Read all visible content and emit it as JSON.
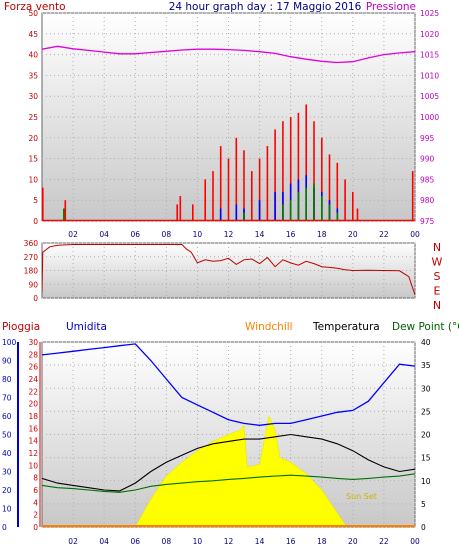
{
  "header": {
    "left": "Forza vento",
    "center": "24 hour graph day : 17 Maggio 2016",
    "right": "Pressione"
  },
  "labels": {
    "pioggia": "Pioggia",
    "umidita": "Umidita",
    "windchill": "Windchill",
    "temperatura": "Temperatura",
    "dewpoint": "Dew Point (°C",
    "sunset": "Sun Set"
  },
  "colors": {
    "wind": "#ff0000",
    "gust": "#0000ff",
    "avg": "#008000",
    "pressure": "#e000e0",
    "temperature": "#000000",
    "humidity": "#0000ff",
    "dewpoint": "#007000",
    "solar": "#ffff00",
    "rain": "#ff8000",
    "header_left": "#c00000",
    "header_center": "#000080",
    "header_right": "#c000c0",
    "rain_axis": "#cc0000",
    "hum_axis": "#0000cc",
    "windchill": "#ff8000",
    "dew_label": "#006000",
    "sunset": "#c8b400",
    "direction": "#c00000"
  },
  "chart_data": [
    {
      "type": "line",
      "name": "wind-pressure",
      "x_ticks": [
        "02",
        "04",
        "06",
        "08",
        "10",
        "12",
        "14",
        "16",
        "18",
        "20",
        "22",
        "00"
      ],
      "y_left_ticks": [
        "0",
        "5",
        "10",
        "15",
        "20",
        "25",
        "30",
        "35",
        "40",
        "45",
        "50"
      ],
      "y_left_range": [
        0,
        50
      ],
      "y_right_ticks": [
        "975",
        "980",
        "985",
        "990",
        "995",
        "1000",
        "1005",
        "1010",
        "1015",
        "1020",
        "1025"
      ],
      "y_right_range": [
        975,
        1025
      ],
      "pressure": {
        "x": [
          0,
          1,
          2,
          3,
          4,
          5,
          6,
          7,
          8,
          9,
          10,
          11,
          12,
          13,
          14,
          15,
          16,
          17,
          18,
          19,
          20,
          21,
          22,
          23,
          24
        ],
        "y": [
          1016.3,
          1017.0,
          1016.4,
          1016.0,
          1015.6,
          1015.2,
          1015.2,
          1015.5,
          1015.8,
          1016.1,
          1016.3,
          1016.3,
          1016.2,
          1016.0,
          1015.7,
          1015.3,
          1014.5,
          1013.9,
          1013.4,
          1013.1,
          1013.3,
          1014.2,
          1015.0,
          1015.4,
          1015.7
        ]
      },
      "wind": [
        [
          0.05,
          8
        ],
        [
          1.5,
          5
        ],
        [
          8.7,
          4
        ],
        [
          8.9,
          6
        ],
        [
          9.7,
          4
        ],
        [
          10.5,
          10
        ],
        [
          11,
          12
        ],
        [
          11.5,
          18
        ],
        [
          12,
          15
        ],
        [
          12.5,
          20
        ],
        [
          13,
          17
        ],
        [
          13.5,
          12
        ],
        [
          14,
          15
        ],
        [
          14.5,
          18
        ],
        [
          15,
          22
        ],
        [
          15.5,
          24
        ],
        [
          16,
          25
        ],
        [
          16.5,
          26
        ],
        [
          17,
          28
        ],
        [
          17.5,
          24
        ],
        [
          18,
          20
        ],
        [
          18.5,
          16
        ],
        [
          19,
          14
        ],
        [
          19.5,
          10
        ],
        [
          20,
          7
        ],
        [
          20.3,
          3
        ],
        [
          23.85,
          12
        ]
      ],
      "gust": [
        [
          11.5,
          3
        ],
        [
          12.5,
          4
        ],
        [
          13,
          3
        ],
        [
          14,
          5
        ],
        [
          15,
          7
        ],
        [
          15.5,
          7
        ],
        [
          16,
          9
        ],
        [
          16.5,
          10
        ],
        [
          17,
          11
        ],
        [
          17.5,
          8
        ],
        [
          18,
          7
        ],
        [
          18.5,
          5
        ],
        [
          19,
          3
        ]
      ],
      "avg": [
        [
          1.4,
          3
        ],
        [
          13,
          2
        ],
        [
          15.5,
          4
        ],
        [
          16,
          5
        ],
        [
          16.5,
          7
        ],
        [
          17,
          8
        ],
        [
          17.5,
          9
        ],
        [
          18,
          6
        ],
        [
          18.5,
          4
        ],
        [
          19,
          2
        ]
      ]
    },
    {
      "type": "line",
      "name": "wind-direction",
      "x_ticks": [
        "02",
        "04",
        "06",
        "08",
        "10",
        "12",
        "14",
        "16",
        "18",
        "20",
        "22",
        "00"
      ],
      "y_left_ticks": [
        "0",
        "90",
        "180",
        "270",
        "360"
      ],
      "y_left_range": [
        0,
        360
      ],
      "y_right_ticks": [
        "N",
        "W",
        "S",
        "E",
        "N"
      ],
      "x": [
        0,
        0.05,
        0.5,
        1,
        2,
        3,
        4,
        5,
        6,
        7,
        8,
        9,
        9.3,
        9.6,
        10,
        10.5,
        11,
        11.5,
        12,
        12.5,
        13,
        13.5,
        14,
        14.5,
        15,
        15.5,
        16,
        16.5,
        17,
        17.5,
        18,
        18.5,
        19,
        19.5,
        20,
        21,
        22,
        23,
        23.6,
        24
      ],
      "y": [
        40,
        300,
        335,
        345,
        350,
        350,
        350,
        350,
        350,
        350,
        350,
        350,
        320,
        300,
        230,
        250,
        240,
        245,
        260,
        220,
        250,
        255,
        225,
        265,
        205,
        250,
        230,
        215,
        240,
        225,
        205,
        200,
        195,
        185,
        180,
        182,
        180,
        178,
        140,
        20
      ]
    },
    {
      "type": "line",
      "name": "temperature-humidity",
      "x_ticks": [
        "02",
        "04",
        "06",
        "08",
        "10",
        "12",
        "14",
        "16",
        "18",
        "20",
        "22",
        "00"
      ],
      "y_rain_ticks": [
        "0",
        "2",
        "4",
        "6",
        "8",
        "10",
        "12",
        "14",
        "16",
        "18",
        "20",
        "22",
        "24",
        "26",
        "28",
        "30"
      ],
      "y_hum_ticks": [
        "0",
        "10",
        "20",
        "30",
        "40",
        "50",
        "60",
        "70",
        "80",
        "90",
        "100"
      ],
      "y_temp_ticks": [
        "0",
        "5",
        "10",
        "15",
        "20",
        "25",
        "30",
        "35",
        "40"
      ],
      "y_temp_range": [
        0,
        40
      ],
      "temperature": {
        "x": [
          0,
          1,
          2,
          3,
          4,
          5,
          6,
          7,
          8,
          9,
          10,
          11,
          12,
          13,
          14,
          15,
          16,
          17,
          18,
          19,
          20,
          21,
          22,
          23,
          24
        ],
        "y": [
          10.5,
          9.5,
          9.0,
          8.5,
          8.0,
          7.8,
          9.5,
          12.0,
          14.0,
          15.5,
          17.0,
          18.0,
          18.5,
          19.0,
          19.0,
          19.5,
          20.0,
          19.5,
          19.0,
          18.0,
          16.5,
          14.5,
          13.0,
          12.0,
          12.5
        ]
      },
      "dewpoint": {
        "x": [
          0,
          1,
          2,
          3,
          4,
          5,
          6,
          7,
          8,
          9,
          10,
          11,
          12,
          13,
          14,
          15,
          16,
          17,
          18,
          19,
          20,
          21,
          22,
          23,
          24
        ],
        "y": [
          9.0,
          8.5,
          8.3,
          8.0,
          7.7,
          7.5,
          8.0,
          8.8,
          9.2,
          9.5,
          9.8,
          10.0,
          10.3,
          10.5,
          10.8,
          11.0,
          11.2,
          11.0,
          10.8,
          10.5,
          10.3,
          10.5,
          10.8,
          11.0,
          11.5
        ]
      },
      "humidity": {
        "x": [
          0,
          1,
          2,
          3,
          4,
          5,
          6,
          7,
          8,
          9,
          10,
          11,
          12,
          13,
          14,
          15,
          16,
          17,
          18,
          19,
          20,
          21,
          22,
          23,
          24
        ],
        "y": [
          93,
          94,
          95,
          96,
          97,
          98,
          99,
          90,
          80,
          70,
          66,
          62,
          58,
          56,
          55,
          56,
          56,
          58,
          60,
          62,
          63,
          68,
          78,
          88,
          87
        ]
      },
      "solar": {
        "x": [
          6,
          7,
          8,
          9,
          10,
          11,
          12,
          12.8,
          13,
          13.2,
          14,
          14.6,
          15,
          15.3,
          16,
          17,
          18,
          19,
          19.6
        ],
        "y": [
          0,
          6,
          11,
          14,
          16.5,
          18.5,
          20,
          21,
          22,
          13,
          13.5,
          24,
          21,
          15,
          14,
          11.5,
          8,
          3,
          0
        ]
      },
      "rain": {
        "x": [
          0,
          24
        ],
        "y": [
          0,
          0
        ]
      }
    }
  ]
}
